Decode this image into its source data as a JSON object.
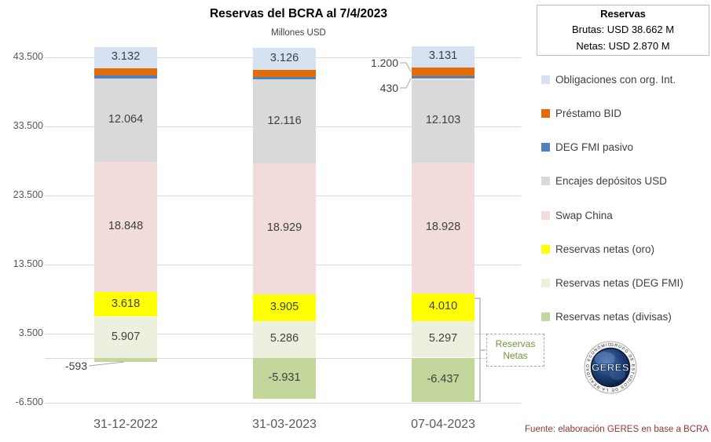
{
  "title": "Reservas del BCRA al 7/4/2023",
  "subtitle": "Millones USD",
  "info_box": {
    "title": "Reservas",
    "brutas": "Brutas: USD 38.662 M",
    "netas": "Netas: USD 2.870 M"
  },
  "footer": {
    "source": "Fuente: elaboración GERES en base a BCRA"
  },
  "logo": {
    "text": "GERES",
    "ring_text": "GRUPO DE ESTUDIOS DE LA REALIDAD ECONÓMICA Y SOCIAL"
  },
  "annotations": {
    "reservas_netas": {
      "line1": "Reservas",
      "line2": "Netas"
    },
    "callouts": [
      {
        "id": "prestamo-bid-070423",
        "text": "1.200"
      },
      {
        "id": "deg-fmi-pasivo-070423",
        "text": "430"
      },
      {
        "id": "divisas-311222",
        "text": "-593"
      }
    ]
  },
  "chart_data": {
    "type": "bar",
    "stacked": true,
    "title": "Reservas del BCRA al 7/4/2023",
    "subtitle": "Millones USD",
    "xlabel": "",
    "ylabel": "Millones USD",
    "ylim": [
      -6500,
      43500
    ],
    "grid": true,
    "legend_position": "right",
    "categories": [
      "31-12-2022",
      "31-03-2023",
      "07-04-2023"
    ],
    "y_ticks": [
      {
        "label": "43.500",
        "value": 43500
      },
      {
        "label": "33.500",
        "value": 33500
      },
      {
        "label": "23.500",
        "value": 23500
      },
      {
        "label": "13.500",
        "value": 13500
      },
      {
        "label": "3.500",
        "value": 3500
      },
      {
        "label": "-6.500",
        "value": -6500
      },
      {
        "label": null,
        "value": 0
      }
    ],
    "series": [
      {
        "key": "divisas",
        "name": "Reservas netas (divisas)",
        "color": "#c3d69b",
        "values": [
          -593,
          -5931,
          -6437
        ],
        "labels": [
          null,
          "-5.931",
          "-6.437"
        ]
      },
      {
        "key": "deg_fmi_netas",
        "name": "Reservas netas (DEG FMI)",
        "color": "#ebf1de",
        "values": [
          5907,
          5286,
          5297
        ],
        "labels": [
          "5.907",
          "5.286",
          "5.297"
        ]
      },
      {
        "key": "oro",
        "name": "Reservas netas (oro)",
        "color": "#ffff00",
        "values": [
          3618,
          3905,
          4010
        ],
        "labels": [
          "3.618",
          "3.905",
          "4.010"
        ]
      },
      {
        "key": "swap",
        "name": "Swap China",
        "color": "#f2dcdb",
        "values": [
          18848,
          18929,
          18928
        ],
        "labels": [
          "18.848",
          "18.929",
          "18.928"
        ]
      },
      {
        "key": "encajes",
        "name": "Encajes depósitos USD",
        "color": "#d9d9d9",
        "values": [
          12064,
          12116,
          12103
        ],
        "labels": [
          "12.064",
          "12.116",
          "12.103"
        ]
      },
      {
        "key": "deg_fmi_pasivo",
        "name": "DEG FMI pasivo",
        "color": "#4f81bd",
        "values": [
          430,
          430,
          430
        ],
        "labels": [
          null,
          null,
          null
        ]
      },
      {
        "key": "prestamo_bid",
        "name": "Préstamo BID",
        "color": "#e36c0a",
        "values": [
          1000,
          1000,
          1200
        ],
        "labels": [
          null,
          null,
          null
        ]
      },
      {
        "key": "obligaciones",
        "name": "Obligaciones con org. Int.",
        "color": "#d6e2f1",
        "values": [
          3132,
          3126,
          3131
        ],
        "labels": [
          "3.132",
          "3.126",
          "3.131"
        ]
      }
    ],
    "legend_order": [
      "obligaciones",
      "prestamo_bid",
      "deg_fmi_pasivo",
      "encajes",
      "swap",
      "oro",
      "deg_fmi_netas",
      "divisas"
    ]
  }
}
